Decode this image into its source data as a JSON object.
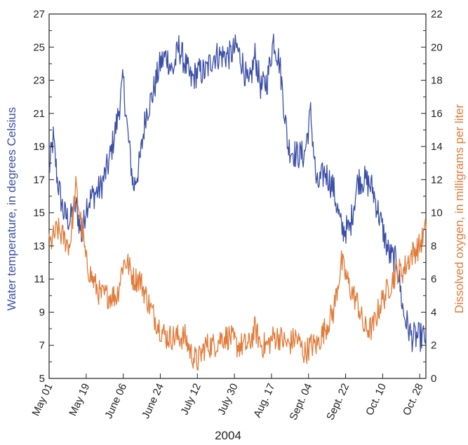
{
  "chart_data": {
    "type": "line",
    "xlabel": "2004",
    "x_tick_labels": [
      "May 01",
      "May 19",
      "June 06",
      "June 24",
      "July 12",
      "July 30",
      "Aug. 17",
      "Sept. 04",
      "Sept. 22",
      "Oct. 10",
      "Oct. 28"
    ],
    "x_tick_dates": [
      "2004-05-01",
      "2004-05-19",
      "2004-06-06",
      "2004-06-24",
      "2004-07-12",
      "2004-07-30",
      "2004-08-17",
      "2004-09-04",
      "2004-09-22",
      "2004-10-10",
      "2004-10-28"
    ],
    "xlim": [
      "2004-05-01",
      "2004-10-31"
    ],
    "y_left": {
      "label": "Water temperature, in degrees Celsius",
      "ylim": [
        5,
        27
      ],
      "ticks": [
        5,
        7,
        9,
        11,
        13,
        15,
        17,
        19,
        21,
        23,
        25,
        27
      ],
      "color": "#3a4fa6"
    },
    "y_right": {
      "label": "Dissolved oxygen, in milligrams per liter",
      "ylim": [
        0,
        22
      ],
      "ticks": [
        0,
        2,
        4,
        6,
        8,
        10,
        12,
        14,
        16,
        18,
        20,
        22
      ],
      "color": "#e07b39"
    },
    "grid": false,
    "series": [
      {
        "axis": "left",
        "color": "#3a4fa6",
        "x": [
          "2004-05-01",
          "2004-05-03",
          "2004-05-05",
          "2004-05-08",
          "2004-05-11",
          "2004-05-14",
          "2004-05-17",
          "2004-05-19",
          "2004-05-22",
          "2004-05-26",
          "2004-05-30",
          "2004-06-03",
          "2004-06-06",
          "2004-06-08",
          "2004-06-11",
          "2004-06-14",
          "2004-06-17",
          "2004-06-20",
          "2004-06-24",
          "2004-06-27",
          "2004-06-30",
          "2004-07-03",
          "2004-07-06",
          "2004-07-09",
          "2004-07-12",
          "2004-07-16",
          "2004-07-20",
          "2004-07-24",
          "2004-07-28",
          "2004-07-31",
          "2004-08-03",
          "2004-08-06",
          "2004-08-09",
          "2004-08-12",
          "2004-08-15",
          "2004-08-18",
          "2004-08-21",
          "2004-08-25",
          "2004-08-29",
          "2004-09-02",
          "2004-09-05",
          "2004-09-08",
          "2004-09-12",
          "2004-09-16",
          "2004-09-20",
          "2004-09-24",
          "2004-09-28",
          "2004-10-01",
          "2004-10-05",
          "2004-10-09",
          "2004-10-13",
          "2004-10-17",
          "2004-10-20",
          "2004-10-24",
          "2004-10-28",
          "2004-10-31"
        ],
        "y": [
          17.5,
          19.5,
          17,
          15,
          14.5,
          15.5,
          13.5,
          15.5,
          16,
          16.5,
          18,
          20.5,
          23,
          20,
          16.5,
          18,
          21,
          22,
          24,
          24.5,
          23.5,
          25,
          24,
          23,
          23.5,
          23.5,
          24.5,
          24.5,
          24.5,
          25,
          24,
          22.5,
          24.5,
          22.5,
          23,
          25.5,
          24,
          19,
          18.5,
          18.5,
          21,
          16.5,
          17.5,
          16.5,
          14,
          14,
          17,
          17,
          16.5,
          14.5,
          12.5,
          12,
          9,
          7.5,
          7.5,
          7.5
        ]
      },
      {
        "axis": "right",
        "color": "#e07b39",
        "x": [
          "2004-05-01",
          "2004-05-03",
          "2004-05-05",
          "2004-05-08",
          "2004-05-11",
          "2004-05-14",
          "2004-05-17",
          "2004-05-19",
          "2004-05-22",
          "2004-05-26",
          "2004-05-30",
          "2004-06-03",
          "2004-06-06",
          "2004-06-08",
          "2004-06-11",
          "2004-06-14",
          "2004-06-17",
          "2004-06-20",
          "2004-06-24",
          "2004-06-27",
          "2004-06-30",
          "2004-07-03",
          "2004-07-06",
          "2004-07-09",
          "2004-07-12",
          "2004-07-16",
          "2004-07-20",
          "2004-07-24",
          "2004-07-28",
          "2004-07-31",
          "2004-08-03",
          "2004-08-06",
          "2004-08-09",
          "2004-08-12",
          "2004-08-15",
          "2004-08-18",
          "2004-08-21",
          "2004-08-25",
          "2004-08-29",
          "2004-09-02",
          "2004-09-05",
          "2004-09-08",
          "2004-09-12",
          "2004-09-16",
          "2004-09-20",
          "2004-09-24",
          "2004-09-28",
          "2004-10-01",
          "2004-10-05",
          "2004-10-09",
          "2004-10-13",
          "2004-10-17",
          "2004-10-20",
          "2004-10-24",
          "2004-10-28",
          "2004-10-31"
        ],
        "y": [
          8,
          8.5,
          9,
          8.5,
          8,
          11.5,
          9,
          7,
          6,
          5,
          5,
          5,
          7,
          7,
          6,
          6,
          5,
          4,
          3,
          2.5,
          2.5,
          2.5,
          2.5,
          1.5,
          1,
          2,
          2,
          2.5,
          2.5,
          2,
          2,
          2,
          3,
          2,
          2,
          2.5,
          2.5,
          2,
          2.5,
          1.5,
          2,
          2,
          3,
          4,
          7,
          5.5,
          4.5,
          3,
          3,
          4.5,
          5.5,
          6.5,
          6.5,
          7.5,
          8,
          9
        ]
      }
    ]
  }
}
